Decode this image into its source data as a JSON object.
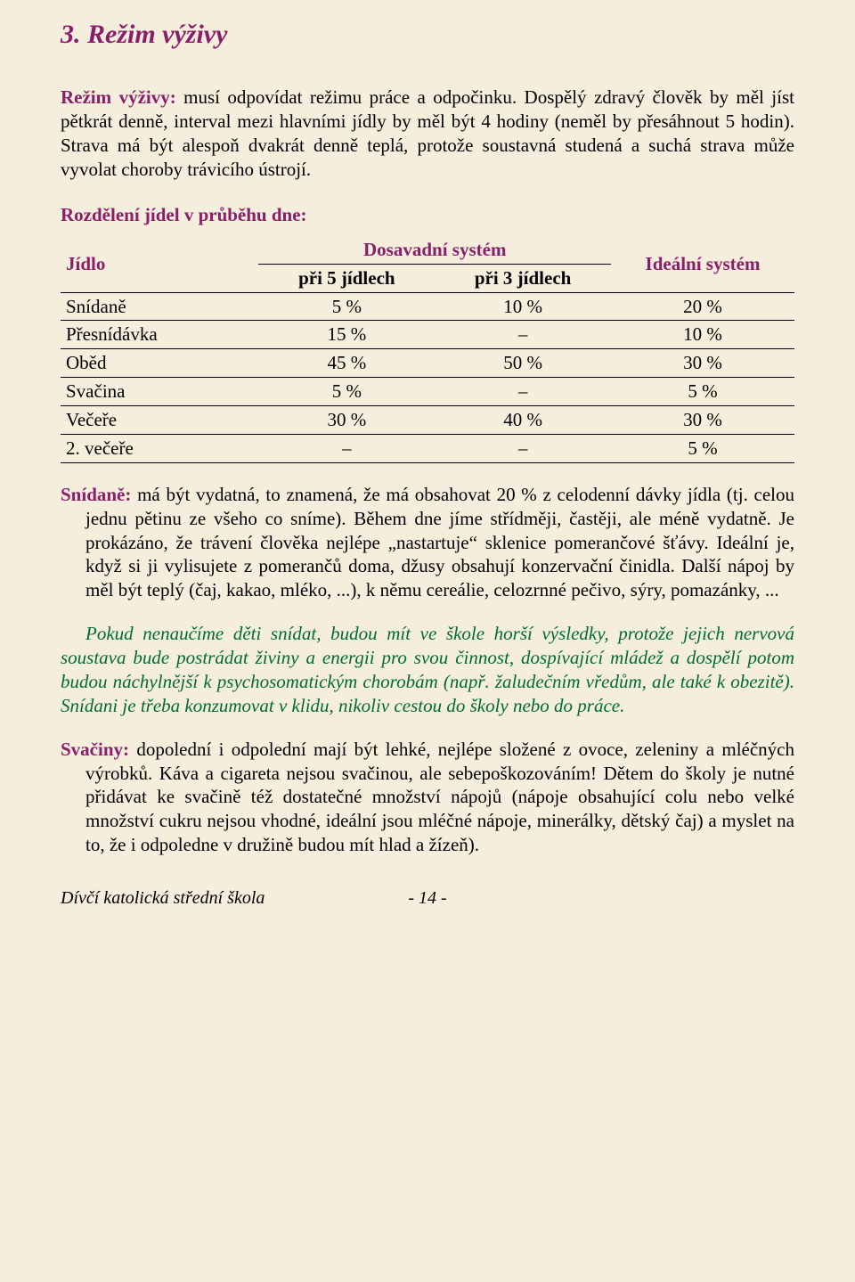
{
  "section": {
    "number": "3.",
    "title": "Režim výživy"
  },
  "intro": {
    "lead": "Režim výživy:",
    "text": " musí odpovídat režimu práce a odpočinku. Dospělý zdravý člověk by měl jíst pětkrát denně, interval mezi hlavními jídly by měl být 4 hodiny (neměl by přesáhnout 5 hodin). Strava má být alespoň dvakrát denně teplá, protože soustavná studená a suchá strava může vyvolat choroby trávicího ústrojí."
  },
  "table": {
    "heading": "Rozdělení jídel v průběhu dne:",
    "col_jidlo": "Jídlo",
    "col_dosavadni": "Dosavadní systém",
    "col_ideal": "Ideální systém",
    "col_pri5": "při 5 jídlech",
    "col_pri3": "při 3 jídlech",
    "rows": [
      {
        "label": "Snídaně",
        "c5": "5 %",
        "c3": "10 %",
        "ideal": "20 %"
      },
      {
        "label": "Přesnídávka",
        "c5": "15 %",
        "c3": "–",
        "ideal": "10 %"
      },
      {
        "label": "Oběd",
        "c5": "45 %",
        "c3": "50 %",
        "ideal": "30 %"
      },
      {
        "label": "Svačina",
        "c5": "5 %",
        "c3": "–",
        "ideal": "5 %"
      },
      {
        "label": "Večeře",
        "c5": "30 %",
        "c3": "40 %",
        "ideal": "30 %"
      },
      {
        "label": "2. večeře",
        "c5": "–",
        "c3": "–",
        "ideal": "5 %"
      }
    ]
  },
  "snidane": {
    "lead": "Snídaně:",
    "text": " má být vydatná, to znamená, že má obsahovat 20 % z celodenní dávky jídla (tj. celou jednu pětinu ze všeho co sníme). Během dne jíme střídměji, častěji, ale méně vydatně. Je prokázáno, že trávení člověka nejlépe „nastartuje“ sklenice pomerančové šťávy. Ideální je, když si ji vylisujete z pomerančů doma, džusy obsahují konzervační činidla. Další nápoj by měl být teplý (čaj, kakao, mléko, ...), k němu cereálie, celozrnné pečivo, sýry, pomazánky, ..."
  },
  "italic_para": "Pokud nenaučíme děti snídat, budou mít ve škole horší výsledky, protože jejich nervová soustava bude postrádat živiny a energii pro svou činnost, dospívající mládež a dospělí potom budou náchylnější k psychosomatickým chorobám (např. žaludečním vředům, ale také k obezitě). Snídani je třeba konzumovat v klidu, nikoliv cestou do školy nebo do práce.",
  "svaciny": {
    "lead": "Svačiny:",
    "text": " dopolední i odpolední mají být lehké, nejlépe složené z ovoce, zeleniny a mléčných výrobků. Káva a cigareta nejsou svačinou, ale sebepoškozováním! Dětem do školy je nutné přidávat ke svačině též dostatečné množství nápojů (nápoje obsahující colu nebo velké množství cukru nejsou vhodné, ideální jsou mléčné nápoje, minerálky, dětský čaj) a myslet na to, že i odpoledne v družině budou mít hlad a žízeň)."
  },
  "footer": {
    "school": "Dívčí katolická střední škola",
    "page": "-  14  -"
  }
}
